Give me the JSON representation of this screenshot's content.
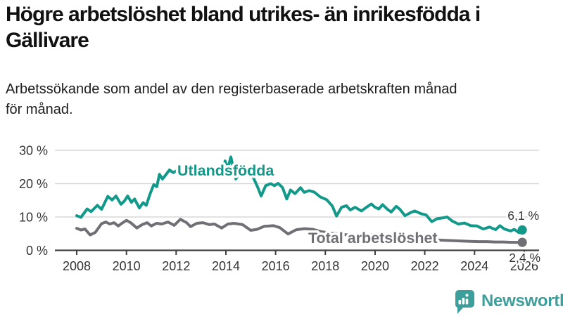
{
  "header": {
    "title": "Högre arbetslöshet bland utrikes- än inrikesfödda i\nGällivare",
    "subtitle": "Arbetssökande som andel av den registerbaserade arbetskraften månad\nför månad."
  },
  "chart_data": {
    "type": "line",
    "title": "Högre arbetslöshet bland utrikes- än inrikesfödda i Gällivare",
    "xlabel": "",
    "ylabel": "Arbetssökande som andel av den registerbaserade arbetskraften",
    "grid": "horizontal",
    "legend_position": "inline-labels-on-chart",
    "x_axis": {
      "ticks": [
        2008,
        2010,
        2012,
        2014,
        2016,
        2018,
        2020,
        2022,
        2024,
        2026
      ],
      "labels": [
        "2008",
        "2010",
        "2012",
        "2014",
        "2016",
        "2018",
        "2020",
        "2022",
        "2024",
        "2026"
      ],
      "range": [
        2008,
        2026.3
      ]
    },
    "y_axis": {
      "ticks": [
        0,
        10,
        20,
        30
      ],
      "labels": [
        "0 %",
        "10 %",
        "20 %",
        "30 %"
      ],
      "range": [
        0,
        30
      ],
      "unit": "%"
    },
    "series": [
      {
        "name": "Utlandsfödda",
        "slug": "utlandsfodda",
        "color": "#12998a",
        "end_value": 6.1,
        "end_label": "6,1 %",
        "points": [
          [
            2008.0,
            10.4
          ],
          [
            2008.17,
            9.9
          ],
          [
            2008.42,
            12.4
          ],
          [
            2008.58,
            11.6
          ],
          [
            2008.83,
            13.5
          ],
          [
            2009.0,
            12.3
          ],
          [
            2009.25,
            16.2
          ],
          [
            2009.42,
            15.1
          ],
          [
            2009.58,
            16.3
          ],
          [
            2009.78,
            13.8
          ],
          [
            2009.92,
            14.8
          ],
          [
            2010.05,
            16.3
          ],
          [
            2010.2,
            14.4
          ],
          [
            2010.33,
            15.4
          ],
          [
            2010.52,
            12.7
          ],
          [
            2010.67,
            14.3
          ],
          [
            2010.8,
            13.5
          ],
          [
            2010.95,
            16.9
          ],
          [
            2011.1,
            19.7
          ],
          [
            2011.22,
            19.1
          ],
          [
            2011.33,
            22.8
          ],
          [
            2011.45,
            21.4
          ],
          [
            2011.58,
            22.6
          ],
          [
            2011.73,
            24.1
          ],
          [
            2011.88,
            23.3
          ],
          [
            2012.05,
            24.0
          ],
          [
            2012.25,
            23.4
          ],
          [
            2012.45,
            23.0
          ],
          [
            2012.67,
            24.0
          ],
          [
            2012.9,
            23.2
          ],
          [
            2013.1,
            23.6
          ],
          [
            2013.3,
            22.5
          ],
          [
            2013.5,
            23.4
          ],
          [
            2013.72,
            22.7
          ],
          [
            2013.85,
            23.2
          ],
          [
            2013.97,
            26.8
          ],
          [
            2014.07,
            24.3
          ],
          [
            2014.2,
            28.0
          ],
          [
            2014.4,
            21.4
          ],
          [
            2014.55,
            23.4
          ],
          [
            2014.75,
            23.1
          ],
          [
            2014.92,
            22.5
          ],
          [
            2015.1,
            21.9
          ],
          [
            2015.28,
            18.9
          ],
          [
            2015.42,
            16.3
          ],
          [
            2015.6,
            19.4
          ],
          [
            2015.8,
            20.0
          ],
          [
            2015.95,
            19.4
          ],
          [
            2016.1,
            20.1
          ],
          [
            2016.28,
            18.8
          ],
          [
            2016.45,
            15.4
          ],
          [
            2016.6,
            18.1
          ],
          [
            2016.78,
            17.0
          ],
          [
            2017.0,
            18.8
          ],
          [
            2017.15,
            17.4
          ],
          [
            2017.35,
            17.9
          ],
          [
            2017.55,
            17.5
          ],
          [
            2017.8,
            16.0
          ],
          [
            2018.05,
            15.2
          ],
          [
            2018.28,
            13.3
          ],
          [
            2018.45,
            10.3
          ],
          [
            2018.65,
            12.9
          ],
          [
            2018.85,
            13.4
          ],
          [
            2019.0,
            12.1
          ],
          [
            2019.2,
            12.9
          ],
          [
            2019.45,
            11.8
          ],
          [
            2019.65,
            12.9
          ],
          [
            2019.85,
            13.9
          ],
          [
            2020.0,
            12.9
          ],
          [
            2020.15,
            12.4
          ],
          [
            2020.3,
            13.7
          ],
          [
            2020.5,
            12.3
          ],
          [
            2020.65,
            11.5
          ],
          [
            2020.85,
            13.2
          ],
          [
            2021.0,
            12.3
          ],
          [
            2021.2,
            10.4
          ],
          [
            2021.45,
            11.4
          ],
          [
            2021.6,
            11.8
          ],
          [
            2021.85,
            11.0
          ],
          [
            2022.05,
            10.6
          ],
          [
            2022.28,
            8.6
          ],
          [
            2022.5,
            9.5
          ],
          [
            2022.7,
            9.7
          ],
          [
            2022.9,
            10.0
          ],
          [
            2023.1,
            8.8
          ],
          [
            2023.35,
            7.9
          ],
          [
            2023.6,
            8.2
          ],
          [
            2023.85,
            7.4
          ],
          [
            2024.1,
            7.3
          ],
          [
            2024.35,
            6.4
          ],
          [
            2024.6,
            7.0
          ],
          [
            2024.85,
            6.2
          ],
          [
            2025.02,
            7.4
          ],
          [
            2025.2,
            6.4
          ],
          [
            2025.45,
            5.8
          ],
          [
            2025.6,
            6.3
          ],
          [
            2025.78,
            5.3
          ],
          [
            2025.92,
            6.1
          ]
        ]
      },
      {
        "name": "Total arbetslöshet",
        "slug": "total-arbetsloshet",
        "color": "#6f6f75",
        "end_value": 2.4,
        "end_label": "2,4 %",
        "points": [
          [
            2008.0,
            6.6
          ],
          [
            2008.17,
            6.1
          ],
          [
            2008.33,
            6.4
          ],
          [
            2008.54,
            4.6
          ],
          [
            2008.75,
            5.4
          ],
          [
            2009.0,
            8.0
          ],
          [
            2009.17,
            8.5
          ],
          [
            2009.33,
            7.9
          ],
          [
            2009.5,
            8.3
          ],
          [
            2009.67,
            7.3
          ],
          [
            2009.83,
            8.2
          ],
          [
            2010.0,
            9.0
          ],
          [
            2010.17,
            8.3
          ],
          [
            2010.42,
            6.7
          ],
          [
            2010.63,
            7.7
          ],
          [
            2010.83,
            8.3
          ],
          [
            2011.0,
            7.3
          ],
          [
            2011.21,
            8.1
          ],
          [
            2011.42,
            7.9
          ],
          [
            2011.67,
            8.5
          ],
          [
            2011.92,
            7.5
          ],
          [
            2012.17,
            9.3
          ],
          [
            2012.42,
            8.3
          ],
          [
            2012.58,
            7.1
          ],
          [
            2012.83,
            8.1
          ],
          [
            2013.08,
            8.3
          ],
          [
            2013.33,
            7.7
          ],
          [
            2013.54,
            7.9
          ],
          [
            2013.83,
            6.7
          ],
          [
            2014.08,
            7.9
          ],
          [
            2014.33,
            8.1
          ],
          [
            2014.67,
            7.7
          ],
          [
            2015.0,
            6.0
          ],
          [
            2015.25,
            6.3
          ],
          [
            2015.54,
            7.2
          ],
          [
            2015.92,
            7.4
          ],
          [
            2016.17,
            6.8
          ],
          [
            2016.5,
            4.9
          ],
          [
            2016.83,
            6.2
          ],
          [
            2017.17,
            6.5
          ],
          [
            2017.5,
            6.3
          ],
          [
            2017.83,
            5.6
          ],
          [
            2018.17,
            5.2
          ],
          [
            2018.5,
            4.9
          ],
          [
            2018.83,
            4.7
          ],
          [
            2019.17,
            4.6
          ],
          [
            2019.5,
            4.4
          ],
          [
            2019.83,
            4.6
          ],
          [
            2020.17,
            4.9
          ],
          [
            2020.5,
            4.6
          ],
          [
            2020.83,
            4.2
          ],
          [
            2021.17,
            3.8
          ],
          [
            2021.5,
            3.6
          ],
          [
            2021.83,
            3.4
          ],
          [
            2022.17,
            3.2
          ],
          [
            2022.5,
            3.1
          ],
          [
            2022.83,
            3.0
          ],
          [
            2023.17,
            2.9
          ],
          [
            2023.5,
            2.8
          ],
          [
            2023.83,
            2.7
          ],
          [
            2024.17,
            2.6
          ],
          [
            2024.5,
            2.6
          ],
          [
            2024.83,
            2.5
          ],
          [
            2025.17,
            2.5
          ],
          [
            2025.5,
            2.4
          ],
          [
            2025.75,
            2.4
          ],
          [
            2025.92,
            2.4
          ]
        ]
      }
    ]
  },
  "footer": {
    "brand": "Newsworthy"
  },
  "colors": {
    "teal_series": "#12998a",
    "gray_series": "#6f6f75",
    "axis": "#404040",
    "grid": "#d9d9d9",
    "tick_text": "#333333",
    "value_label_text": "#333333",
    "title_text": "#111111",
    "logo_teal": "#3d9f9b",
    "background": "#ffffff"
  }
}
